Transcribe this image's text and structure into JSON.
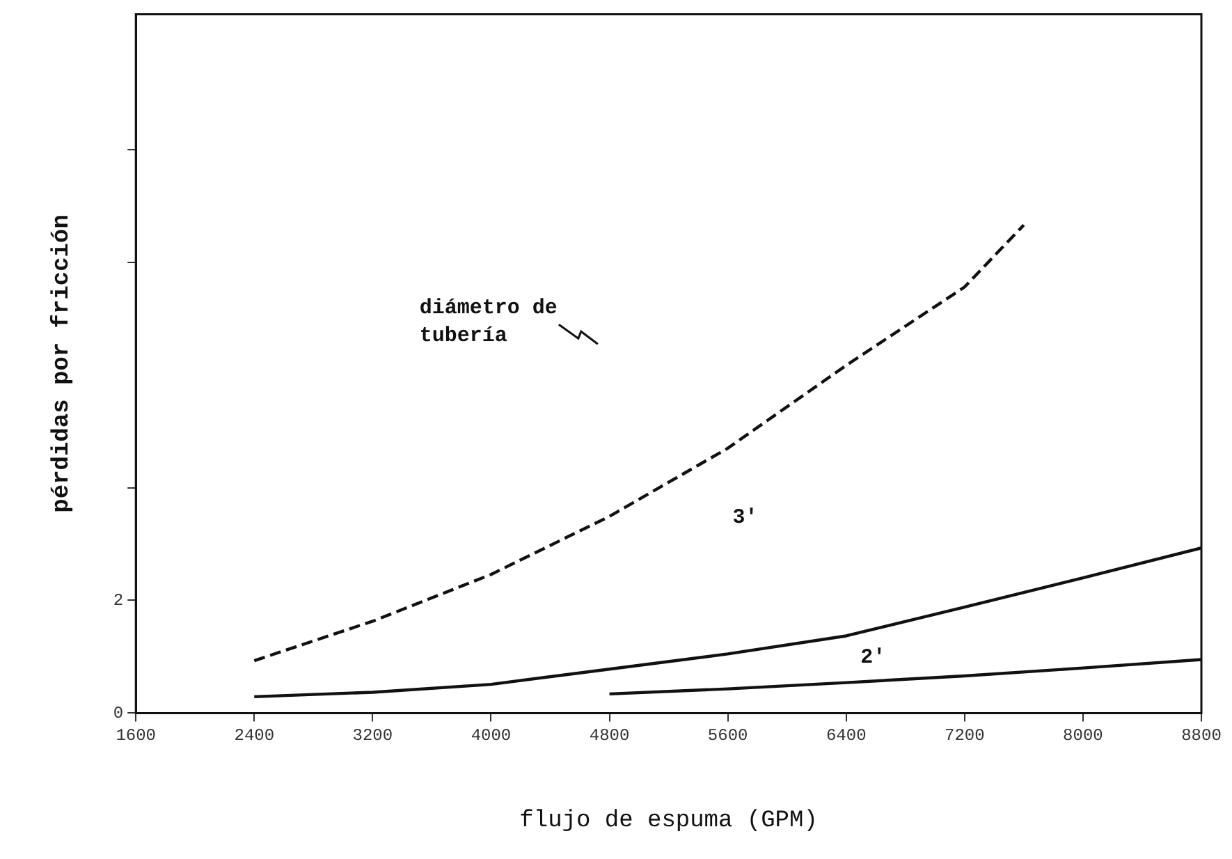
{
  "chart_data": {
    "type": "line",
    "xlabel": "flujo de espuma (GPM)",
    "ylabel": "pérdidas por fricción",
    "xlim": [
      1600,
      8800
    ],
    "xticks": [
      1600,
      2400,
      3200,
      4000,
      4800,
      5600,
      6400,
      7200,
      8000,
      8800
    ],
    "ylim": [
      0,
      12.4
    ],
    "yticks": [
      0,
      2,
      {
        "value": 4,
        "label": null
      },
      {
        "value": 8,
        "label": null
      },
      {
        "value": 10,
        "label": null
      }
    ],
    "grid": false,
    "legend": false,
    "marker": "none",
    "series": [
      {
        "color": "#111111",
        "line_style": "dashed",
        "x": [
          2400,
          3200,
          4000,
          4800,
          5600,
          6400,
          7200,
          7600
        ],
        "values": [
          0.93,
          1.63,
          2.46,
          3.49,
          4.7,
          6.17,
          7.56,
          8.66
        ]
      },
      {
        "color": "#111111",
        "line_style": "solid",
        "x": [
          2400,
          3200,
          4000,
          4800,
          5600,
          6400,
          7200,
          8000,
          8800
        ],
        "values": [
          0.29,
          0.37,
          0.51,
          0.78,
          1.05,
          1.37,
          1.88,
          2.4,
          2.93
        ]
      },
      {
        "color": "#111111",
        "line_style": "solid",
        "x": [
          4800,
          5600,
          6400,
          7200,
          8000,
          8800
        ],
        "values": [
          0.34,
          0.43,
          0.54,
          0.66,
          0.8,
          0.95
        ]
      }
    ],
    "annotations": [
      "diámetro de tubería",
      "3'",
      "2'"
    ]
  }
}
